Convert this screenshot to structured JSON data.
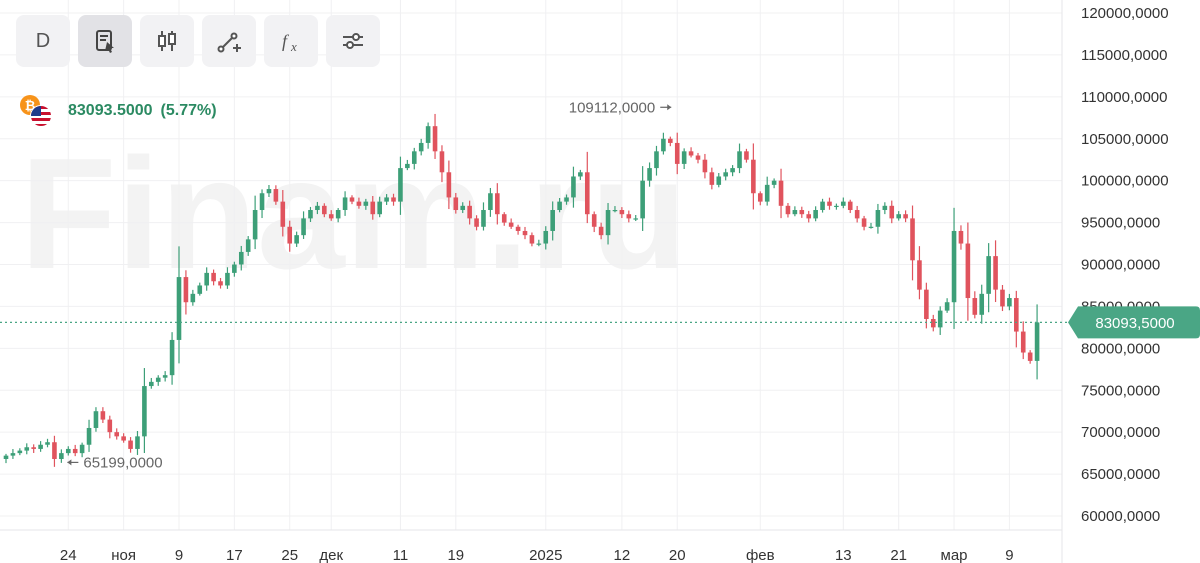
{
  "toolbar": {
    "interval_label": "D",
    "buttons": [
      {
        "icon": "indicator-list-icon",
        "active": true
      },
      {
        "icon": "candlestick-icon",
        "active": false
      },
      {
        "icon": "draw-line-icon",
        "active": false
      },
      {
        "icon": "function-fx-icon",
        "active": false
      },
      {
        "icon": "settings-sliders-icon",
        "active": false
      }
    ]
  },
  "ticker": {
    "icons": [
      "bitcoin-icon",
      "usd-flag-icon"
    ],
    "price": "83093.5000",
    "change": "(5.77%)",
    "color": "#2b8a62"
  },
  "watermark": "Finam.ru",
  "colors": {
    "up": "#3d9f78",
    "down": "#e0535d",
    "last_price": "#4aa685"
  },
  "chart_data": {
    "type": "candlestick",
    "ylim": [
      60000,
      120000
    ],
    "y_ticks": [
      "120000,0000",
      "115000,0000",
      "110000,0000",
      "105000,0000",
      "100000,0000",
      "95000,0000",
      "90000,0000",
      "85000,0000",
      "80000,0000",
      "75000,0000",
      "70000,0000",
      "65000,0000",
      "60000,0000"
    ],
    "y_tick_values": [
      120000,
      115000,
      110000,
      105000,
      100000,
      95000,
      90000,
      85000,
      80000,
      75000,
      70000,
      65000,
      60000
    ],
    "x_ticks": [
      {
        "label": "24",
        "index": 9
      },
      {
        "label": "ноя",
        "index": 17
      },
      {
        "label": "9",
        "index": 25
      },
      {
        "label": "17",
        "index": 33
      },
      {
        "label": "25",
        "index": 41
      },
      {
        "label": "дек",
        "index": 47
      },
      {
        "label": "11",
        "index": 57
      },
      {
        "label": "19",
        "index": 65
      },
      {
        "label": "2025",
        "index": 78
      },
      {
        "label": "12",
        "index": 89
      },
      {
        "label": "20",
        "index": 97
      },
      {
        "label": "фев",
        "index": 109
      },
      {
        "label": "13",
        "index": 121
      },
      {
        "label": "21",
        "index": 129
      },
      {
        "label": "мар",
        "index": 137
      },
      {
        "label": "9",
        "index": 145
      }
    ],
    "last_price": 83093.5,
    "last_price_label": "83093,5000",
    "max_label": {
      "text": "109112,0000",
      "index": 97,
      "value": 109112
    },
    "min_label": {
      "text": "65199,0000",
      "index": 8,
      "value": 65199
    },
    "closes": [
      67200,
      67500,
      67800,
      68200,
      68000,
      68500,
      68800,
      66800,
      67500,
      68000,
      67500,
      68500,
      70500,
      72500,
      71500,
      70000,
      69500,
      69000,
      68000,
      69500,
      75500,
      76000,
      76500,
      76800,
      81000,
      88500,
      85500,
      86500,
      87500,
      89000,
      88000,
      87500,
      89000,
      90000,
      91500,
      93000,
      96500,
      98500,
      99000,
      97500,
      94500,
      92500,
      93500,
      95500,
      96500,
      97000,
      96000,
      95500,
      96500,
      98000,
      97500,
      97000,
      97500,
      96000,
      97500,
      98000,
      97500,
      101500,
      102000,
      103500,
      104500,
      106500,
      103500,
      101000,
      98000,
      96500,
      97000,
      95500,
      94500,
      96500,
      98500,
      96000,
      95000,
      94500,
      94000,
      93500,
      92500,
      92500,
      94000,
      96500,
      97500,
      98000,
      100500,
      101000,
      96000,
      94500,
      93500,
      96500,
      96500,
      96000,
      95500,
      95500,
      100000,
      101500,
      103500,
      105000,
      104500,
      102000,
      103500,
      103000,
      102500,
      101000,
      99500,
      100500,
      101000,
      101500,
      103500,
      102500,
      98500,
      97500,
      99500,
      100000,
      97000,
      96000,
      96500,
      96000,
      95500,
      96500,
      97500,
      97000,
      97000,
      97500,
      96500,
      95500,
      94500,
      94500,
      96500,
      97000,
      95500,
      96000,
      95500,
      90500,
      87000,
      83500,
      82500,
      84500,
      85500,
      94000,
      92500,
      86000,
      84000,
      86500,
      91000,
      87000,
      85000,
      86000,
      82000,
      79500,
      78500,
      83093.5
    ]
  }
}
